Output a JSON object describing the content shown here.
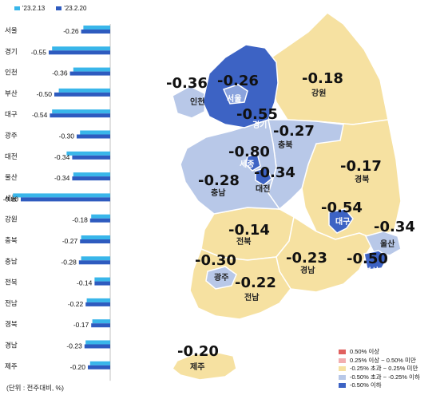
{
  "chart_data": {
    "type": "bar",
    "orientation": "horizontal",
    "legend": [
      "'23.2.13",
      "'23.2.20"
    ],
    "categories": [
      "서울",
      "경기",
      "인천",
      "부산",
      "대구",
      "광주",
      "대전",
      "울산",
      "세종",
      "강원",
      "충북",
      "충남",
      "전북",
      "전남",
      "경북",
      "경남",
      "제주"
    ],
    "series": [
      {
        "name": "'23.2.13",
        "values": [
          -0.24,
          -0.52,
          -0.33,
          -0.46,
          -0.52,
          -0.27,
          -0.39,
          -0.33,
          -0.87,
          -0.17,
          -0.26,
          -0.26,
          -0.14,
          -0.21,
          -0.16,
          -0.22,
          -0.18
        ]
      },
      {
        "name": "'23.2.20",
        "values": [
          -0.26,
          -0.55,
          -0.36,
          -0.5,
          -0.54,
          -0.3,
          -0.34,
          -0.34,
          -0.8,
          -0.18,
          -0.27,
          -0.28,
          -0.14,
          -0.22,
          -0.17,
          -0.23,
          -0.2
        ]
      }
    ],
    "value_labels": [
      "-0.26",
      "-0.55",
      "-0.36",
      "-0.50",
      "-0.54",
      "-0.30",
      "-0.34",
      "-0.34",
      "-0.80",
      "-0.18",
      "-0.27",
      "-0.28",
      "-0.14",
      "-0.22",
      "-0.17",
      "-0.23",
      "-0.20"
    ],
    "unit_note": "(단위 : 전주대비, %)"
  },
  "colors": {
    "series_prev": "#39b6ea",
    "series_curr": "#2e5bbf",
    "lvl_up_high": "#e0605e",
    "lvl_up_mid": "#f2aeb0",
    "lvl_neutral": "#f6e1a1",
    "lvl_down_mid": "#b8c8e8",
    "lvl_down_high": "#3d63c4"
  },
  "map": {
    "regions": [
      {
        "id": "seoul",
        "name": "서울",
        "value": "-0.26"
      },
      {
        "id": "gyeonggi",
        "name": "경기",
        "value": "-0.55"
      },
      {
        "id": "incheon",
        "name": "인천",
        "value": "-0.36"
      },
      {
        "id": "gangwon",
        "name": "강원",
        "value": "-0.18"
      },
      {
        "id": "chungbuk",
        "name": "충북",
        "value": "-0.27"
      },
      {
        "id": "sejong",
        "name": "세종",
        "value": "-0.80"
      },
      {
        "id": "chungnam",
        "name": "충남",
        "value": "-0.28"
      },
      {
        "id": "daejeon",
        "name": "대전",
        "value": "-0.34"
      },
      {
        "id": "gyeongbuk",
        "name": "경북",
        "value": "-0.17"
      },
      {
        "id": "daegu",
        "name": "대구",
        "value": "-0.54"
      },
      {
        "id": "jeonbuk",
        "name": "전북",
        "value": "-0.14"
      },
      {
        "id": "ulsan",
        "name": "울산",
        "value": "-0.34"
      },
      {
        "id": "gwangju",
        "name": "광주",
        "value": "-0.30"
      },
      {
        "id": "gyeongnam",
        "name": "경남",
        "value": "-0.23"
      },
      {
        "id": "busan",
        "name": "부산",
        "value": "-0.50"
      },
      {
        "id": "jeonnam",
        "name": "전남",
        "value": "-0.22"
      },
      {
        "id": "jeju",
        "name": "제주",
        "value": "-0.20"
      }
    ],
    "legend": [
      {
        "label": "0.50% 이상",
        "color": "#e0605e"
      },
      {
        "label": "0.25% 이상 ~ 0.50% 미만",
        "color": "#f2aeb0"
      },
      {
        "label": "-0.25% 초과 ~ 0.25% 미만",
        "color": "#f6e1a1"
      },
      {
        "label": "-0.50% 초과 ~ -0.25% 이하",
        "color": "#b8c8e8"
      },
      {
        "label": "-0.50% 이하",
        "color": "#3d63c4"
      }
    ]
  }
}
